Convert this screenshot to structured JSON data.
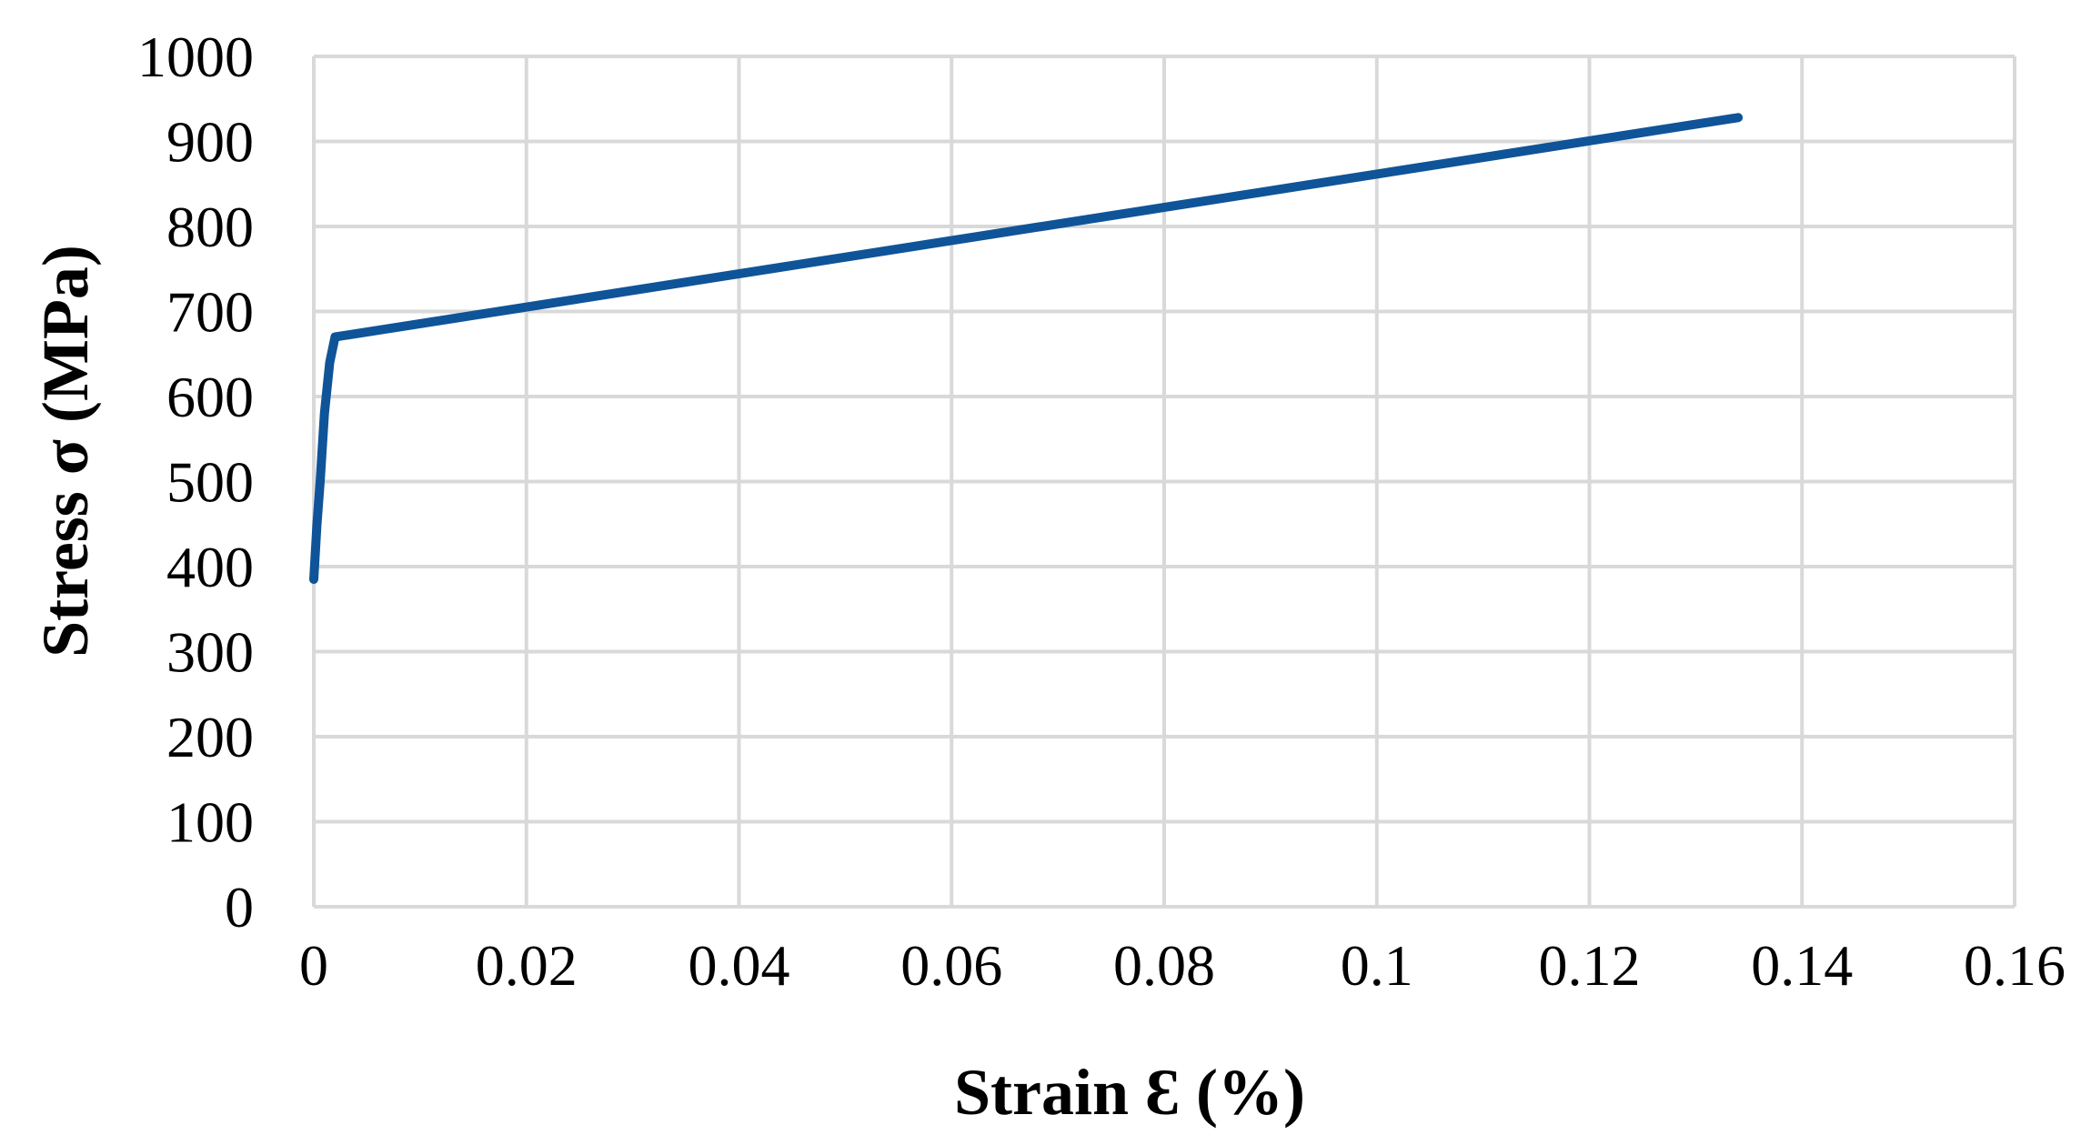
{
  "chart_data": {
    "type": "line",
    "title": "",
    "xlabel": "Strain Ɛ (%)",
    "ylabel": "Stress σ (MPa)",
    "xlim": [
      0,
      0.16
    ],
    "ylim": [
      0,
      1000
    ],
    "x_ticks": [
      "0",
      "0.02",
      "0.04",
      "0.06",
      "0.08",
      "0.1",
      "0.12",
      "0.14",
      "0.16"
    ],
    "y_ticks": [
      "0",
      "100",
      "200",
      "300",
      "400",
      "500",
      "600",
      "700",
      "800",
      "900",
      "1000"
    ],
    "grid": true,
    "legend": "none",
    "series": [
      {
        "color": "#0f5499",
        "x": [
          0.0,
          0.0003,
          0.0006,
          0.001,
          0.0015,
          0.002,
          0.134
        ],
        "y": [
          385,
          450,
          500,
          580,
          640,
          670,
          928
        ]
      }
    ]
  }
}
